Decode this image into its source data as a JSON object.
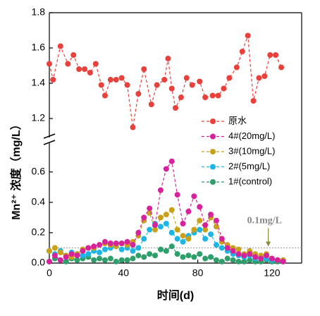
{
  "chart_data": [
    {
      "type": "line",
      "ylim": [
        1.1,
        1.8
      ],
      "yticks": [
        1.2,
        1.4,
        1.6,
        1.8
      ],
      "xlim": [
        0,
        136
      ],
      "x": [
        0,
        2,
        6,
        10,
        13,
        16,
        19,
        22,
        25,
        28,
        30,
        33,
        36,
        39,
        42,
        45,
        48,
        51,
        55,
        58,
        62,
        64,
        66,
        68,
        71,
        74,
        77,
        81,
        84,
        88,
        91,
        94,
        97,
        101,
        104,
        107,
        110,
        113,
        116,
        119,
        122,
        125
      ],
      "series": [
        {
          "name": "原水",
          "color": "#e8413c",
          "values": [
            1.51,
            1.42,
            1.61,
            1.51,
            1.56,
            1.48,
            1.48,
            1.46,
            1.51,
            1.39,
            1.33,
            1.42,
            1.42,
            1.43,
            1.39,
            1.15,
            1.34,
            1.48,
            1.28,
            1.39,
            1.42,
            1.54,
            1.37,
            1.26,
            1.32,
            1.43,
            1.39,
            1.41,
            1.32,
            1.33,
            1.33,
            1.37,
            1.43,
            1.49,
            1.58,
            1.67,
            1.3,
            1.43,
            1.44,
            1.56,
            1.56,
            1.49
          ]
        }
      ]
    },
    {
      "type": "line",
      "ylabel": "Mn²⁺ 浓度（mg/L）",
      "xlabel": "时间(d)",
      "ylim": [
        0,
        0.78
      ],
      "yticks": [
        {
          "value": 0,
          "label": "0.0"
        },
        0.2,
        0.4,
        0.6
      ],
      "xlim": [
        0,
        136
      ],
      "xticks": [
        0,
        40,
        80,
        120
      ],
      "reference_line": 0.1,
      "annotation": {
        "text": "0.1mg/L",
        "x": 118,
        "y": 0.1
      },
      "x": [
        0,
        3,
        6,
        9,
        12,
        15,
        18,
        21,
        24,
        27,
        30,
        33,
        36,
        39,
        42,
        45,
        48,
        51,
        54,
        57,
        60,
        63,
        66,
        69,
        72,
        75,
        78,
        81,
        84,
        87,
        90,
        93,
        96,
        99,
        102,
        105,
        108,
        111,
        114,
        117,
        120,
        123,
        126
      ],
      "series": [
        {
          "name": "4#(20mg/L)",
          "color": "#d6239b",
          "values": [
            0.01,
            0.05,
            0.02,
            0.04,
            0.06,
            0.05,
            0.08,
            0.1,
            0.11,
            0.12,
            0.14,
            0.13,
            0.13,
            0.13,
            0.14,
            0.12,
            0.2,
            0.3,
            0.36,
            0.25,
            0.48,
            0.62,
            0.67,
            0.45,
            0.26,
            0.34,
            0.44,
            0.37,
            0.25,
            0.32,
            0.28,
            0.16,
            0.1,
            0.08,
            0.06,
            0.05,
            0.06,
            0.04,
            0.03,
            0.05,
            0.03,
            0.02,
            0.01
          ]
        },
        {
          "name": "3#(10mg/L)",
          "color": "#c9a019",
          "values": [
            0.08,
            0.1,
            0.07,
            0.05,
            0.04,
            0.06,
            0.09,
            0.1,
            0.1,
            0.12,
            0.13,
            0.12,
            0.11,
            0.13,
            0.12,
            0.14,
            0.18,
            0.28,
            0.33,
            0.22,
            0.3,
            0.32,
            0.35,
            0.22,
            0.18,
            0.16,
            0.22,
            0.28,
            0.22,
            0.3,
            0.24,
            0.14,
            0.12,
            0.1,
            0.09,
            0.06,
            0.08,
            0.06,
            0.05,
            0.06,
            0.03,
            0.02,
            0.02
          ]
        },
        {
          "name": "2#(5mg/L)",
          "color": "#1eb4e6",
          "values": [
            0.08,
            0.06,
            0.08,
            0.05,
            0.07,
            0.06,
            0.05,
            0.06,
            0.08,
            0.07,
            0.09,
            0.1,
            0.11,
            0.09,
            0.1,
            0.08,
            0.1,
            0.16,
            0.22,
            0.26,
            0.24,
            0.26,
            0.2,
            0.16,
            0.14,
            0.18,
            0.2,
            0.22,
            0.16,
            0.19,
            0.12,
            0.1,
            0.08,
            0.06,
            0.05,
            0.04,
            0.05,
            0.03,
            0.04,
            0.03,
            0.02,
            0.02,
            0.02
          ]
        },
        {
          "name": "1#(control)",
          "color": "#2e9e6a",
          "values": [
            0.01,
            0.03,
            0.02,
            0.01,
            0.03,
            0.02,
            0.03,
            0.04,
            0.02,
            0.03,
            0.02,
            0.03,
            0.01,
            0.02,
            0.02,
            0.03,
            0.05,
            0.04,
            0.06,
            0.05,
            0.09,
            0.08,
            0.11,
            0.06,
            0.04,
            0.05,
            0.04,
            0.06,
            0.03,
            0.04,
            0.02,
            0.01,
            0.03,
            0.02,
            0.01,
            0.01,
            0.02,
            0.01,
            0.01,
            0.02,
            0.01,
            0.01,
            0.01
          ]
        }
      ]
    }
  ]
}
